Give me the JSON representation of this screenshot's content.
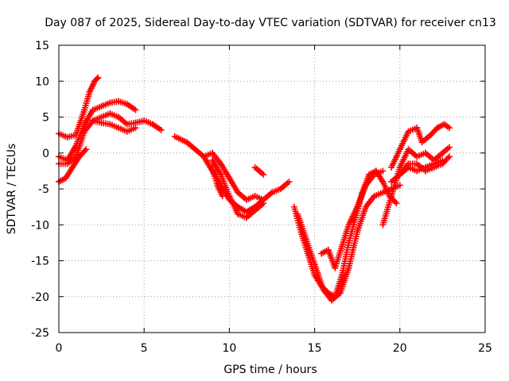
{
  "chart_data": {
    "type": "scatter",
    "title": "Day 087 of 2025, Sidereal Day-to-day VTEC variation (SDTVAR) for receiver cn13",
    "xlabel": "GPS time / hours",
    "ylabel": "SDTVAR / TECUs",
    "xlim": [
      0,
      25
    ],
    "ylim": [
      -25,
      15
    ],
    "xticks": [
      "0",
      "5",
      "10",
      "15",
      "20",
      "25"
    ],
    "yticks": [
      "15",
      "10",
      "5",
      "0",
      "-5",
      "-10",
      "-15",
      "-20",
      "-25"
    ],
    "grid": true,
    "marker": "+",
    "color": "#ff0000",
    "series": [
      {
        "name": "track-1",
        "x": [
          0,
          0.5,
          1,
          1.5,
          1.8,
          2.1,
          2.3
        ],
        "y": [
          2.7,
          2.2,
          2.5,
          6,
          8.5,
          10,
          10.5
        ]
      },
      {
        "name": "track-2",
        "x": [
          0,
          0.5,
          1,
          1.5,
          2,
          2.5,
          3,
          3.5,
          4,
          4.5
        ],
        "y": [
          -0.5,
          -1,
          1,
          4,
          6,
          6.5,
          7,
          7.2,
          6.8,
          6
        ]
      },
      {
        "name": "track-3",
        "x": [
          0,
          0.5,
          1,
          1.5,
          2,
          2.5,
          3,
          3.5,
          4,
          4.5,
          5,
          5.5,
          6
        ],
        "y": [
          -1.5,
          -1.5,
          -0.5,
          3,
          4.5,
          5,
          5.5,
          5,
          4,
          4.2,
          4.5,
          4,
          3.2
        ]
      },
      {
        "name": "track-4",
        "x": [
          0,
          0.4,
          0.8,
          1.2,
          1.6
        ],
        "y": [
          -4,
          -3.5,
          -2,
          -0.5,
          0.5
        ]
      },
      {
        "name": "track-5",
        "x": [
          2,
          2.5,
          3,
          3.5,
          4,
          4.5
        ],
        "y": [
          4.5,
          4.2,
          4,
          3.5,
          3,
          3.5
        ]
      },
      {
        "name": "track-6",
        "x": [
          6.8,
          7.5,
          8,
          8.5,
          9,
          9.5,
          10,
          10.5,
          11,
          11.5,
          12
        ],
        "y": [
          2.3,
          1.5,
          0.5,
          -0.5,
          0,
          -1.5,
          -3.5,
          -5.5,
          -6.5,
          -6,
          -6.5
        ]
      },
      {
        "name": "track-7",
        "x": [
          8.5,
          9,
          9.5,
          10,
          10.5,
          11,
          11.5,
          12,
          12.5,
          13,
          13.5
        ],
        "y": [
          -0.5,
          -2.5,
          -4.5,
          -6.5,
          -7.5,
          -8.2,
          -7.5,
          -6.5,
          -5.5,
          -5,
          -4
        ]
      },
      {
        "name": "track-8",
        "x": [
          9,
          9.5,
          10,
          10.5,
          11,
          11.5,
          12
        ],
        "y": [
          -1,
          -3,
          -6,
          -8.5,
          -9,
          -8,
          -7
        ]
      },
      {
        "name": "track-9",
        "x": [
          9,
          9.3,
          9.6
        ],
        "y": [
          -2,
          -4.5,
          -6
        ]
      },
      {
        "name": "track-10",
        "x": [
          11.5,
          12
        ],
        "y": [
          -2,
          -3
        ]
      },
      {
        "name": "track-11",
        "x": [
          13.8,
          14.2,
          14.6,
          15,
          15.4,
          15.8,
          16.2,
          16.6,
          17,
          17.4,
          17.8,
          18.2,
          18.6,
          19,
          19.4,
          19.8
        ],
        "y": [
          -7.5,
          -11,
          -14,
          -17,
          -18.5,
          -19.5,
          -20,
          -17,
          -12.5,
          -9,
          -5.5,
          -3,
          -2.5,
          -4,
          -6,
          -7
        ]
      },
      {
        "name": "track-12",
        "x": [
          14,
          14.5,
          15,
          15.5,
          16,
          16.5,
          17,
          17.5,
          18,
          18.5,
          19,
          19.5,
          20
        ],
        "y": [
          -8.5,
          -12,
          -15.5,
          -19,
          -20.5,
          -19.5,
          -16,
          -11,
          -7.5,
          -6,
          -5.5,
          -5,
          -4.5
        ]
      },
      {
        "name": "track-13",
        "x": [
          15.4,
          15.8,
          16.2,
          16.6,
          17,
          17.5,
          18,
          18.5,
          19
        ],
        "y": [
          -14,
          -13.5,
          -16,
          -13,
          -10,
          -7.5,
          -4.5,
          -3,
          -2.5
        ]
      },
      {
        "name": "track-14",
        "x": [
          19.5,
          20,
          20.5,
          21,
          21.5,
          22,
          22.5,
          22.9
        ],
        "y": [
          -4,
          -3,
          -1.5,
          -1.5,
          -2.5,
          -2,
          -1.5,
          -0.5
        ]
      },
      {
        "name": "track-15",
        "x": [
          19,
          19.5,
          20,
          20.5,
          21,
          21.5,
          22,
          22.5,
          22.9
        ],
        "y": [
          -10,
          -6,
          -2,
          0.5,
          -0.5,
          0,
          -1,
          0,
          0.8
        ]
      },
      {
        "name": "track-16",
        "x": [
          19.5,
          20,
          20.5,
          21,
          21.3,
          21.8,
          22.2,
          22.6,
          22.9
        ],
        "y": [
          -2,
          0.5,
          3,
          3.5,
          1.5,
          2.5,
          3.5,
          4,
          3.5
        ]
      },
      {
        "name": "track-17",
        "x": [
          20,
          20.5,
          21,
          21.5,
          22,
          22.5
        ],
        "y": [
          -3,
          -2,
          -2.5,
          -2,
          -1.5,
          -1
        ]
      }
    ]
  }
}
